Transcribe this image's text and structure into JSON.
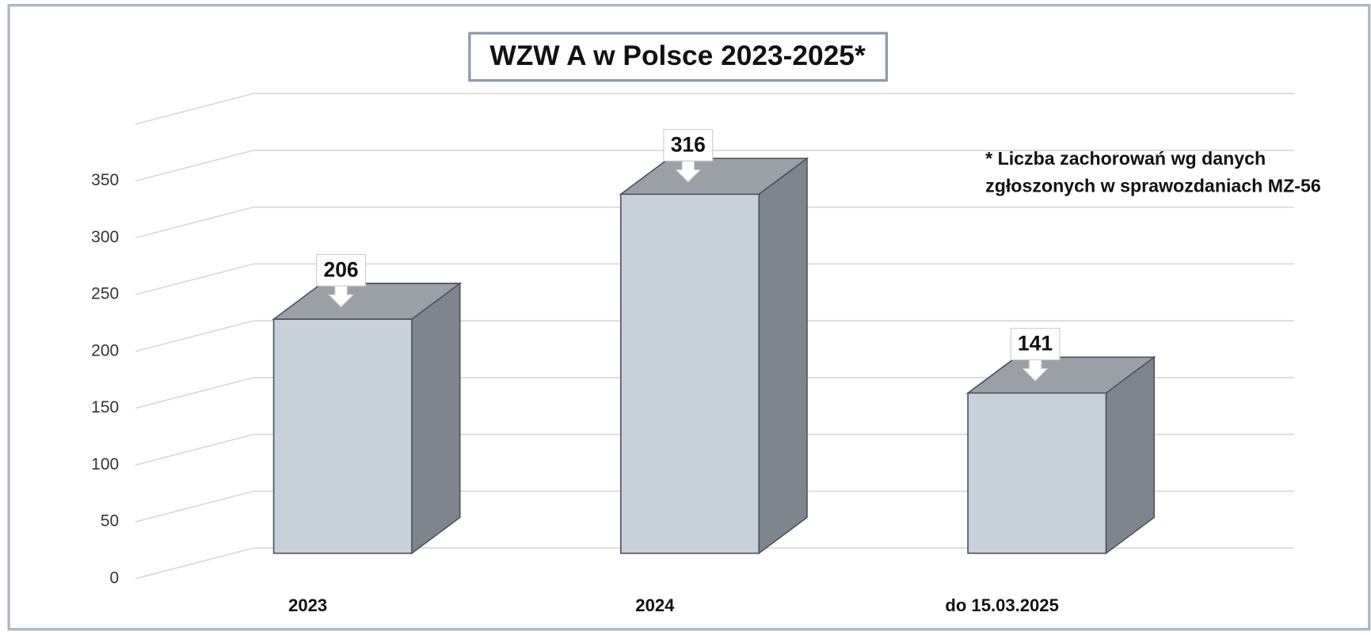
{
  "chart_data": {
    "type": "bar3d",
    "title": "WZW A w Polsce 2023-2025*",
    "annotation": [
      "* Liczba zachorowań wg danych",
      "zgłoszonych w sprawozdaniach MZ-56"
    ],
    "categories": [
      "2023",
      "2024",
      "do 15.03.2025"
    ],
    "values": [
      206,
      316,
      141
    ],
    "colors": {
      "front": "#c8d0da",
      "side": "#7f858c",
      "top": "#9aa0a6"
    },
    "ylim": [
      0,
      400
    ],
    "yticks": [
      0,
      50,
      100,
      150,
      200,
      250,
      300,
      350
    ],
    "grid": true
  }
}
